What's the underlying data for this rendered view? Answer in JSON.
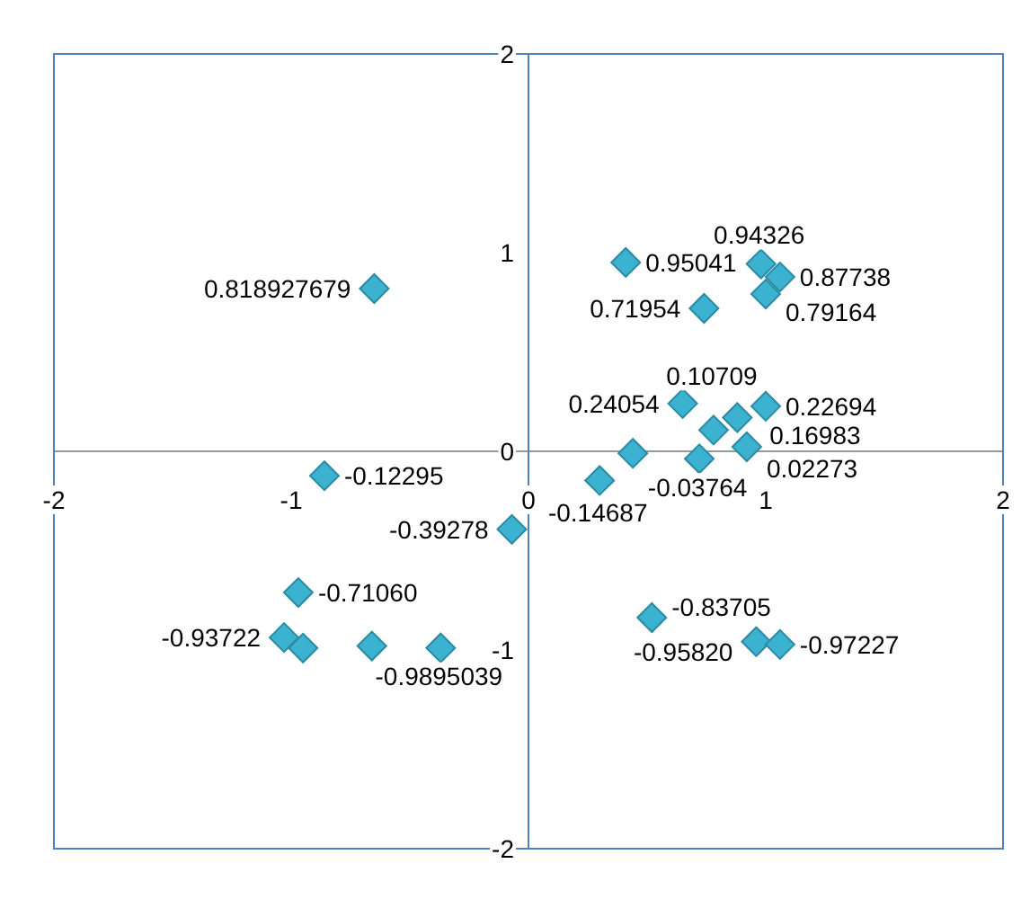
{
  "chart_data": {
    "type": "scatter",
    "marker": "diamond",
    "grid": false,
    "legend": false,
    "xlim": [
      -2,
      2
    ],
    "ylim": [
      -2,
      2
    ],
    "xticks": [
      -2,
      -1,
      0,
      1,
      2
    ],
    "yticks": [
      -2,
      -1,
      0,
      1,
      2
    ],
    "series": [
      {
        "color": "#3bb3d0",
        "x": [
          -0.65,
          0.41,
          0.98,
          1.06,
          1.0,
          0.74,
          0.65,
          1.0,
          0.88,
          0.78,
          0.72,
          0.92,
          0.3,
          0.44,
          -0.86,
          -0.07,
          -0.97,
          0.52,
          0.96,
          1.06,
          -1.03,
          -0.95,
          -0.66,
          -0.37
        ],
        "values": [
          0.818927679,
          0.95041,
          0.94326,
          0.87738,
          0.79164,
          0.71954,
          0.24054,
          0.22694,
          0.16983,
          0.10709,
          -0.03764,
          0.02273,
          -0.14687,
          -0.01,
          -0.12295,
          -0.39278,
          -0.7106,
          -0.83705,
          -0.9582,
          -0.97227,
          -0.93722,
          -0.99,
          -0.98,
          -0.9895039
        ],
        "value_labels": [
          "0.818927679",
          "0.95041",
          "0.94326",
          "0.87738",
          "0.79164",
          "0.71954",
          "0.24054",
          "0.22694",
          "0.16983",
          "0.10709",
          "-0.03764",
          "0.02273",
          "-0.14687",
          null,
          "-0.12295",
          "-0.39278",
          "-0.71060",
          "-0.83705",
          "-0.95820",
          "-0.97227",
          "-0.93722",
          null,
          null,
          "-0.9895039"
        ]
      }
    ]
  }
}
